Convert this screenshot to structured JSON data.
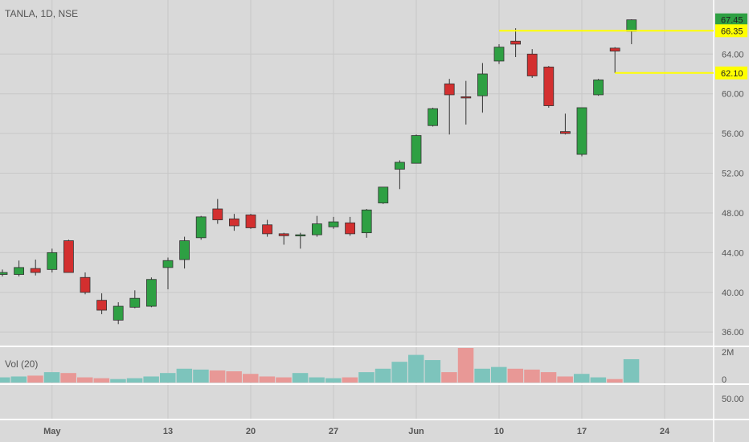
{
  "header": {
    "title": "TANLA, 1D, NSE"
  },
  "volume_panel": {
    "label": "Vol (20)"
  },
  "colors": {
    "background": "#d9d9d9",
    "grid": "#c8c8c8",
    "up": "#2ea043",
    "down": "#d32f2f",
    "vol_up": "#7dc4bc",
    "vol_down": "#e89896",
    "level_line": "#ffff00",
    "last_price_tag": "#2ea043"
  },
  "price_tags": [
    {
      "value": "67.45",
      "kind": "last"
    },
    {
      "value": "66.35",
      "kind": "level"
    },
    {
      "value": "62.10",
      "kind": "level"
    }
  ],
  "chart_data": {
    "type": "candlestick",
    "symbol": "TANLA",
    "timeframe": "1D",
    "exchange": "NSE",
    "y_ticks": [
      "36.00",
      "40.00",
      "44.00",
      "48.00",
      "52.00",
      "56.00",
      "60.00",
      "64.00"
    ],
    "ylim": [
      34.8,
      68.8
    ],
    "x_ticks": [
      "May",
      "13",
      "20",
      "27",
      "Jun",
      "10",
      "17",
      "24"
    ],
    "x_tick_index": [
      3,
      10,
      15,
      20,
      25,
      30,
      35,
      40
    ],
    "volume_ticks": [
      "2M",
      "0"
    ],
    "volume_ylim": [
      0,
      2
    ],
    "lower_ticks": [
      "50.00"
    ],
    "horizontal_levels": [
      {
        "value": 66.35,
        "from_index": 30,
        "to_index": 43
      },
      {
        "value": 62.1,
        "from_index": 37,
        "to_index": 43
      }
    ],
    "candles": [
      {
        "o": 41.8,
        "h": 42.3,
        "l": 41.6,
        "c": 42.0,
        "v": 0.3
      },
      {
        "o": 41.8,
        "h": 43.2,
        "l": 41.6,
        "c": 42.5,
        "v": 0.35
      },
      {
        "o": 42.4,
        "h": 43.3,
        "l": 41.7,
        "c": 42.0,
        "v": 0.4
      },
      {
        "o": 42.3,
        "h": 44.4,
        "l": 42.0,
        "c": 44.0,
        "v": 0.6
      },
      {
        "o": 45.2,
        "h": 45.3,
        "l": 42.0,
        "c": 42.0,
        "v": 0.55
      },
      {
        "o": 41.5,
        "h": 42.0,
        "l": 39.8,
        "c": 40.0,
        "v": 0.3
      },
      {
        "o": 39.2,
        "h": 39.9,
        "l": 37.8,
        "c": 38.2,
        "v": 0.25
      },
      {
        "o": 37.2,
        "h": 39.0,
        "l": 36.8,
        "c": 38.6,
        "v": 0.2
      },
      {
        "o": 38.5,
        "h": 40.2,
        "l": 38.4,
        "c": 39.4,
        "v": 0.25
      },
      {
        "o": 38.6,
        "h": 41.5,
        "l": 38.5,
        "c": 41.3,
        "v": 0.35
      },
      {
        "o": 42.5,
        "h": 43.5,
        "l": 40.3,
        "c": 43.2,
        "v": 0.55
      },
      {
        "o": 43.3,
        "h": 45.6,
        "l": 42.4,
        "c": 45.2,
        "v": 0.8
      },
      {
        "o": 45.5,
        "h": 47.7,
        "l": 45.3,
        "c": 47.6,
        "v": 0.75
      },
      {
        "o": 48.4,
        "h": 49.4,
        "l": 46.9,
        "c": 47.3,
        "v": 0.7
      },
      {
        "o": 47.4,
        "h": 47.9,
        "l": 46.2,
        "c": 46.7,
        "v": 0.65
      },
      {
        "o": 47.8,
        "h": 47.9,
        "l": 46.4,
        "c": 46.5,
        "v": 0.5
      },
      {
        "o": 46.8,
        "h": 47.3,
        "l": 45.6,
        "c": 45.9,
        "v": 0.35
      },
      {
        "o": 45.9,
        "h": 46.0,
        "l": 44.8,
        "c": 45.7,
        "v": 0.3
      },
      {
        "o": 45.8,
        "h": 46.0,
        "l": 44.4,
        "c": 45.8,
        "v": 0.55
      },
      {
        "o": 45.8,
        "h": 47.7,
        "l": 45.6,
        "c": 46.9,
        "v": 0.3
      },
      {
        "o": 46.6,
        "h": 47.6,
        "l": 46.4,
        "c": 47.1,
        "v": 0.25
      },
      {
        "o": 47.0,
        "h": 47.6,
        "l": 45.7,
        "c": 45.9,
        "v": 0.3
      },
      {
        "o": 46.0,
        "h": 48.4,
        "l": 45.5,
        "c": 48.3,
        "v": 0.6
      },
      {
        "o": 49.0,
        "h": 50.6,
        "l": 48.9,
        "c": 50.6,
        "v": 0.8
      },
      {
        "o": 52.4,
        "h": 53.3,
        "l": 50.4,
        "c": 53.1,
        "v": 1.2
      },
      {
        "o": 53.0,
        "h": 55.9,
        "l": 53.0,
        "c": 55.8,
        "v": 1.6
      },
      {
        "o": 56.8,
        "h": 58.6,
        "l": 56.7,
        "c": 58.5,
        "v": 1.3
      },
      {
        "o": 61.0,
        "h": 61.5,
        "l": 55.9,
        "c": 59.9,
        "v": 0.6
      },
      {
        "o": 59.7,
        "h": 61.3,
        "l": 56.9,
        "c": 59.6,
        "v": 2.0
      },
      {
        "o": 59.8,
        "h": 63.1,
        "l": 58.1,
        "c": 62.0,
        "v": 0.8
      },
      {
        "o": 63.3,
        "h": 65.0,
        "l": 63.0,
        "c": 64.7,
        "v": 0.9
      },
      {
        "o": 65.3,
        "h": 66.6,
        "l": 63.7,
        "c": 65.0,
        "v": 0.8
      },
      {
        "o": 64.0,
        "h": 64.5,
        "l": 61.6,
        "c": 61.8,
        "v": 0.75
      },
      {
        "o": 62.7,
        "h": 62.8,
        "l": 58.6,
        "c": 58.8,
        "v": 0.6
      },
      {
        "o": 56.2,
        "h": 58.0,
        "l": 55.9,
        "c": 56.0,
        "v": 0.35
      },
      {
        "o": 53.9,
        "h": 58.6,
        "l": 53.7,
        "c": 58.6,
        "v": 0.5
      },
      {
        "o": 59.9,
        "h": 61.5,
        "l": 59.8,
        "c": 61.4,
        "v": 0.3
      },
      {
        "o": 64.6,
        "h": 64.7,
        "l": 62.1,
        "c": 64.3,
        "v": 0.2
      },
      {
        "o": 66.3,
        "h": 67.5,
        "l": 65.0,
        "c": 67.45,
        "v": 1.35
      }
    ]
  }
}
